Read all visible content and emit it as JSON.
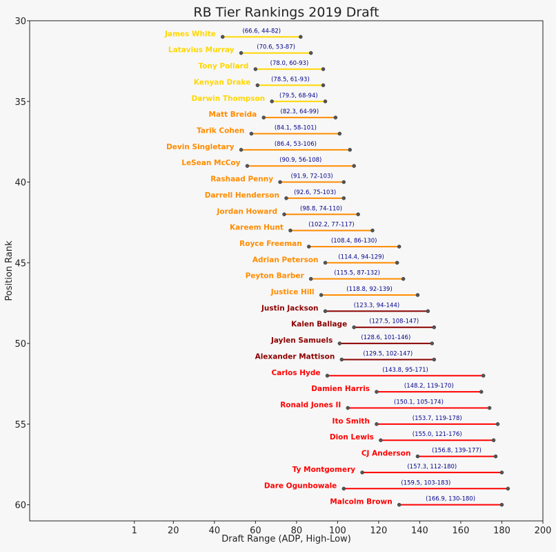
{
  "chart_data": {
    "type": "range",
    "title": "RB Tier Rankings 2019 Draft",
    "xlabel": "Draft Range (ADP, High-Low)",
    "ylabel": "Position Rank",
    "xlim": [
      -50,
      200
    ],
    "ylim": [
      61,
      30
    ],
    "x_ticks": [
      1,
      20,
      40,
      60,
      80,
      100,
      120,
      140,
      160,
      180,
      200
    ],
    "y_ticks": [
      30,
      35,
      40,
      45,
      50,
      55,
      60
    ],
    "grid": false,
    "tier_colors": {
      "1": "#ffd700",
      "2": "#ff8c00",
      "3": "#8b0000",
      "4": "#ff0000"
    },
    "points": [
      {
        "rank": 31,
        "player": "James White",
        "tier": 1,
        "avg": 66.6,
        "low": 44,
        "high": 82,
        "label": "(66.6, 44-82)"
      },
      {
        "rank": 32,
        "player": "Latavius Murray",
        "tier": 1,
        "avg": 70.6,
        "low": 53,
        "high": 87,
        "label": "(70.6, 53-87)"
      },
      {
        "rank": 33,
        "player": "Tony Pollard",
        "tier": 1,
        "avg": 78.0,
        "low": 60,
        "high": 93,
        "label": "(78.0, 60-93)"
      },
      {
        "rank": 34,
        "player": "Kenyan Drake",
        "tier": 1,
        "avg": 78.5,
        "low": 61,
        "high": 93,
        "label": "(78.5, 61-93)"
      },
      {
        "rank": 35,
        "player": "Darwin Thompson",
        "tier": 1,
        "avg": 79.5,
        "low": 68,
        "high": 94,
        "label": "(79.5, 68-94)"
      },
      {
        "rank": 36,
        "player": "Matt Breida",
        "tier": 2,
        "avg": 82.3,
        "low": 64,
        "high": 99,
        "label": "(82.3, 64-99)"
      },
      {
        "rank": 37,
        "player": "Tarik Cohen",
        "tier": 2,
        "avg": 84.1,
        "low": 58,
        "high": 101,
        "label": "(84.1, 58-101)"
      },
      {
        "rank": 38,
        "player": "Devin Singletary",
        "tier": 2,
        "avg": 86.4,
        "low": 53,
        "high": 106,
        "label": "(86.4, 53-106)"
      },
      {
        "rank": 39,
        "player": "LeSean McCoy",
        "tier": 2,
        "avg": 90.9,
        "low": 56,
        "high": 108,
        "label": "(90.9, 56-108)"
      },
      {
        "rank": 40,
        "player": "Rashaad Penny",
        "tier": 2,
        "avg": 91.9,
        "low": 72,
        "high": 103,
        "label": "(91.9, 72-103)"
      },
      {
        "rank": 41,
        "player": "Darrell Henderson",
        "tier": 2,
        "avg": 92.6,
        "low": 75,
        "high": 103,
        "label": "(92.6, 75-103)"
      },
      {
        "rank": 42,
        "player": "Jordan Howard",
        "tier": 2,
        "avg": 98.8,
        "low": 74,
        "high": 110,
        "label": "(98.8, 74-110)"
      },
      {
        "rank": 43,
        "player": "Kareem Hunt",
        "tier": 2,
        "avg": 102.2,
        "low": 77,
        "high": 117,
        "label": "(102.2, 77-117)"
      },
      {
        "rank": 44,
        "player": "Royce Freeman",
        "tier": 2,
        "avg": 108.4,
        "low": 86,
        "high": 130,
        "label": "(108.4, 86-130)"
      },
      {
        "rank": 45,
        "player": "Adrian Peterson",
        "tier": 2,
        "avg": 114.4,
        "low": 94,
        "high": 129,
        "label": "(114.4, 94-129)"
      },
      {
        "rank": 46,
        "player": "Peyton Barber",
        "tier": 2,
        "avg": 115.5,
        "low": 87,
        "high": 132,
        "label": "(115.5, 87-132)"
      },
      {
        "rank": 47,
        "player": "Justice Hill",
        "tier": 2,
        "avg": 118.8,
        "low": 92,
        "high": 139,
        "label": "(118.8, 92-139)"
      },
      {
        "rank": 48,
        "player": "Justin Jackson",
        "tier": 3,
        "avg": 123.3,
        "low": 94,
        "high": 144,
        "label": "(123.3, 94-144)"
      },
      {
        "rank": 49,
        "player": "Kalen Ballage",
        "tier": 3,
        "avg": 127.5,
        "low": 108,
        "high": 147,
        "label": "(127.5, 108-147)"
      },
      {
        "rank": 50,
        "player": "Jaylen Samuels",
        "tier": 3,
        "avg": 128.6,
        "low": 101,
        "high": 146,
        "label": "(128.6, 101-146)"
      },
      {
        "rank": 51,
        "player": "Alexander Mattison",
        "tier": 3,
        "avg": 129.5,
        "low": 102,
        "high": 147,
        "label": "(129.5, 102-147)"
      },
      {
        "rank": 52,
        "player": "Carlos Hyde",
        "tier": 4,
        "avg": 143.8,
        "low": 95,
        "high": 171,
        "label": "(143.8, 95-171)"
      },
      {
        "rank": 53,
        "player": "Damien Harris",
        "tier": 4,
        "avg": 148.2,
        "low": 119,
        "high": 170,
        "label": "(148.2, 119-170)"
      },
      {
        "rank": 54,
        "player": "Ronald Jones II",
        "tier": 4,
        "avg": 150.1,
        "low": 105,
        "high": 174,
        "label": "(150.1, 105-174)"
      },
      {
        "rank": 55,
        "player": "Ito Smith",
        "tier": 4,
        "avg": 153.7,
        "low": 119,
        "high": 178,
        "label": "(153.7, 119-178)"
      },
      {
        "rank": 56,
        "player": "Dion Lewis",
        "tier": 4,
        "avg": 155.0,
        "low": 121,
        "high": 176,
        "label": "(155.0, 121-176)"
      },
      {
        "rank": 57,
        "player": "CJ Anderson",
        "tier": 4,
        "avg": 156.8,
        "low": 139,
        "high": 177,
        "label": "(156.8, 139-177)"
      },
      {
        "rank": 58,
        "player": "Ty Montgomery",
        "tier": 4,
        "avg": 157.3,
        "low": 112,
        "high": 180,
        "label": "(157.3, 112-180)"
      },
      {
        "rank": 59,
        "player": "Dare Ogunbowale",
        "tier": 4,
        "avg": 159.5,
        "low": 103,
        "high": 183,
        "label": "(159.5, 103-183)"
      },
      {
        "rank": 60,
        "player": "Malcolm Brown",
        "tier": 4,
        "avg": 166.9,
        "low": 130,
        "high": 180,
        "label": "(166.9, 130-180)"
      }
    ]
  }
}
